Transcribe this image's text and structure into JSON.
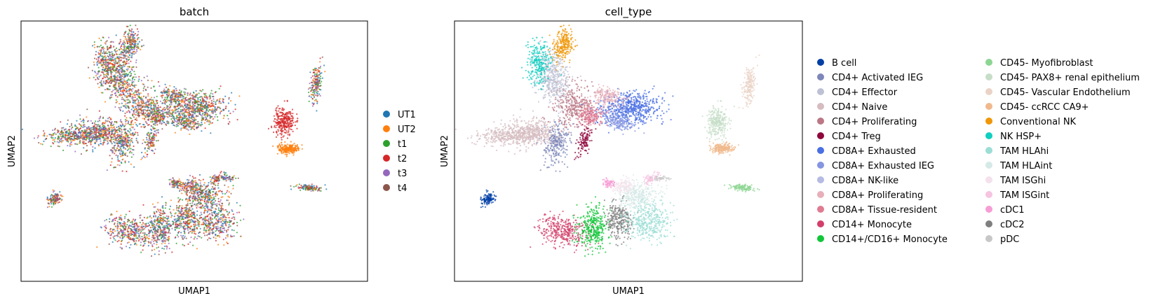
{
  "chart_data": [
    {
      "type": "scatter",
      "title": "batch",
      "xlabel": "UMAP1",
      "ylabel": "UMAP2",
      "grid": false,
      "legend_position": "right",
      "series": [
        {
          "name": "UT1",
          "color": "#1f77b4"
        },
        {
          "name": "UT2",
          "color": "#ff7f0e"
        },
        {
          "name": "t1",
          "color": "#2ca02c"
        },
        {
          "name": "t2",
          "color": "#d62728"
        },
        {
          "name": "t3",
          "color": "#9467bd"
        },
        {
          "name": "t4",
          "color": "#8c564b"
        }
      ]
    },
    {
      "type": "scatter",
      "title": "cell_type",
      "xlabel": "UMAP1",
      "ylabel": "UMAP2",
      "grid": false,
      "legend_position": "right",
      "series": [
        {
          "name": "B cell",
          "color": "#023fa5"
        },
        {
          "name": "CD4+ Activated IEG",
          "color": "#7d87b9"
        },
        {
          "name": "CD4+ Effector",
          "color": "#bec1d4"
        },
        {
          "name": "CD4+ Naive",
          "color": "#d6bcc0"
        },
        {
          "name": "CD4+ Proliferating",
          "color": "#bb7784"
        },
        {
          "name": "CD4+ Treg",
          "color": "#8e063b"
        },
        {
          "name": "CD8A+ Exhausted",
          "color": "#4a6fe3"
        },
        {
          "name": "CD8A+ Exhausted IEG",
          "color": "#8595e1"
        },
        {
          "name": "CD8A+ NK-like",
          "color": "#b5bbe3"
        },
        {
          "name": "CD8A+ Proliferating",
          "color": "#e6afb9"
        },
        {
          "name": "CD8A+ Tissue-resident",
          "color": "#e07b91"
        },
        {
          "name": "CD14+ Monocyte",
          "color": "#d33f6a"
        },
        {
          "name": "CD14+/CD16+ Monocyte",
          "color": "#11c638"
        },
        {
          "name": "CD45- Myofibroblast",
          "color": "#8dd593"
        },
        {
          "name": "CD45- PAX8+ renal epithelium",
          "color": "#c6dec7"
        },
        {
          "name": "CD45- Vascular Endothelium",
          "color": "#ead3c6"
        },
        {
          "name": "CD45- ccRCC CA9+",
          "color": "#f0b98d"
        },
        {
          "name": "Conventional NK",
          "color": "#ef9708"
        },
        {
          "name": "NK HSP+",
          "color": "#0fcfc0"
        },
        {
          "name": "TAM HLAhi",
          "color": "#9cded6"
        },
        {
          "name": "TAM HLAint",
          "color": "#d5eae7"
        },
        {
          "name": "TAM ISGhi",
          "color": "#f3e1eb"
        },
        {
          "name": "TAM ISGint",
          "color": "#f6c4e1"
        },
        {
          "name": "cDC1",
          "color": "#f79cd4"
        },
        {
          "name": "cDC2",
          "color": "#7f7f7f"
        },
        {
          "name": "pDC",
          "color": "#c7c7c7"
        }
      ]
    }
  ]
}
